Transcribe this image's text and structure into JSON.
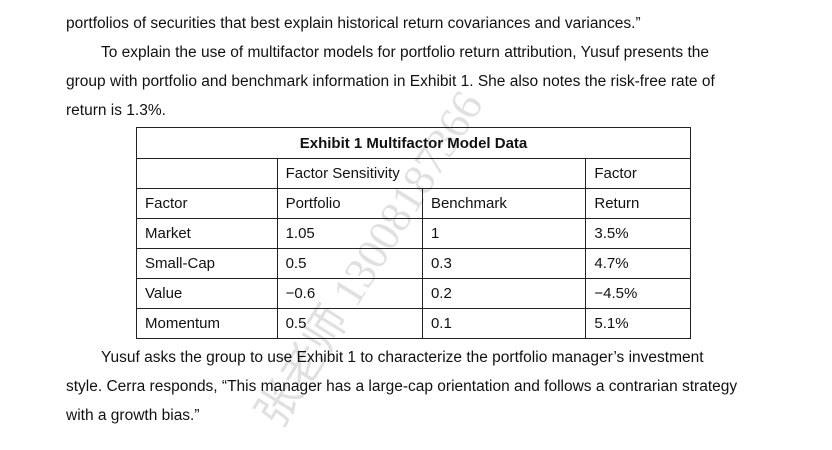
{
  "text": {
    "line1": "portfolios of securities that best explain historical return covariances and variances.”",
    "line2": "To explain the use of multifactor models for portfolio return attribution, Yusuf presents the",
    "line3": "group with portfolio and benchmark information in Exhibit 1. She also notes the risk-free rate of",
    "line4": "return is 1.3%.",
    "line5": "Yusuf asks the group to use Exhibit 1 to characterize the portfolio manager’s investment",
    "line6": "style. Cerra responds, “This manager has a large-cap orientation and follows a contrarian strategy",
    "line7": "with a growth bias.”"
  },
  "exhibit": {
    "title": "Exhibit 1  Multifactor Model Data",
    "header_top": {
      "col1": "",
      "col2": "Factor Sensitivity",
      "col4": "Factor"
    },
    "header_bottom": {
      "col1": "Factor",
      "col2": "Portfolio",
      "col3": "Benchmark",
      "col4": "Return"
    },
    "rows": [
      {
        "factor": "Market",
        "portfolio": "1.05",
        "benchmark": "1",
        "return": "3.5%"
      },
      {
        "factor": "Small-Cap",
        "portfolio": "0.5",
        "benchmark": "0.3",
        "return": "4.7%"
      },
      {
        "factor": "Value",
        "portfolio": "−0.6",
        "benchmark": "0.2",
        "return": "−4.5%"
      },
      {
        "factor": "Momentum",
        "portfolio": "0.5",
        "benchmark": "0.1",
        "return": "5.1%"
      }
    ]
  },
  "watermark": {
    "text": "张老师 13008187366",
    "color": "#c8c8c8"
  }
}
